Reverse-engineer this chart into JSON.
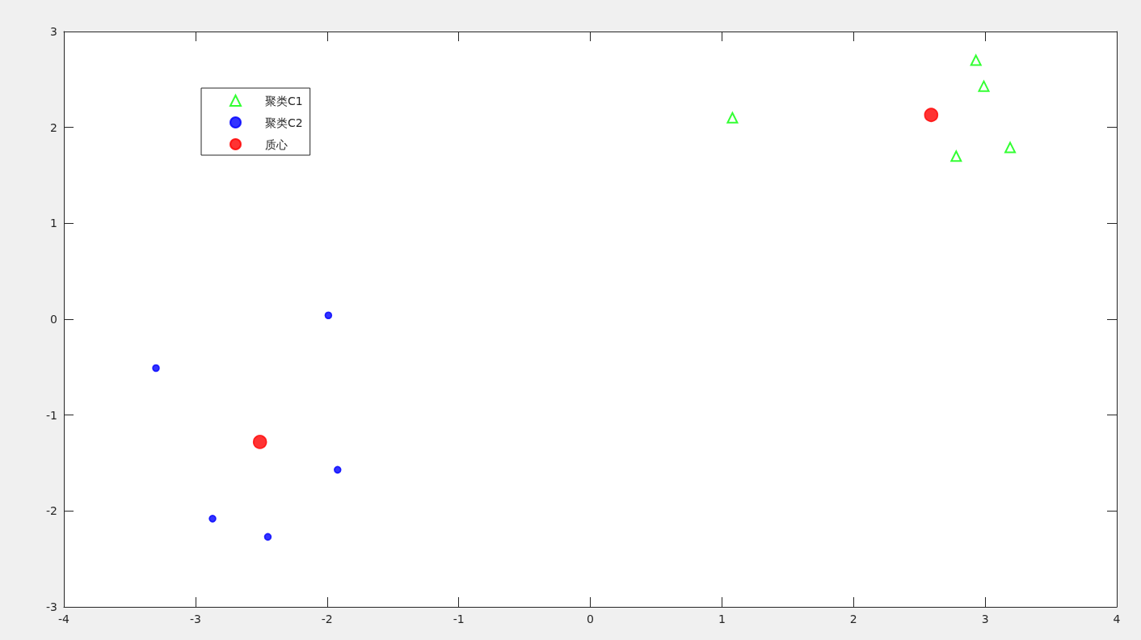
{
  "chart_data": {
    "type": "scatter",
    "series": [
      {
        "name": "聚类C1",
        "color": "#00ff00",
        "marker": "triangle",
        "x": [
          1.08,
          2.93,
          2.99,
          3.19,
          2.78
        ],
        "values": [
          2.1,
          2.7,
          2.43,
          1.79,
          1.7
        ]
      },
      {
        "name": "聚类C2",
        "color": "#0000ff",
        "marker": "circle",
        "x": [
          -1.99,
          -3.3,
          -1.92,
          -2.87,
          -2.45
        ],
        "values": [
          0.04,
          -0.51,
          -1.57,
          -2.08,
          -2.27
        ]
      },
      {
        "name": "质心",
        "color": "#ff0000",
        "marker": "circle",
        "x": [
          2.59,
          -2.51
        ],
        "values": [
          2.13,
          -1.28
        ]
      }
    ],
    "xlim": [
      -4,
      4
    ],
    "xticks": [
      -4,
      -3,
      -2,
      -1,
      0,
      1,
      2,
      3,
      4
    ],
    "ylim": [
      -3,
      3
    ],
    "yticks": [
      -3,
      -2,
      -1,
      0,
      1,
      2,
      3
    ],
    "grid": false,
    "legend": "top left"
  }
}
